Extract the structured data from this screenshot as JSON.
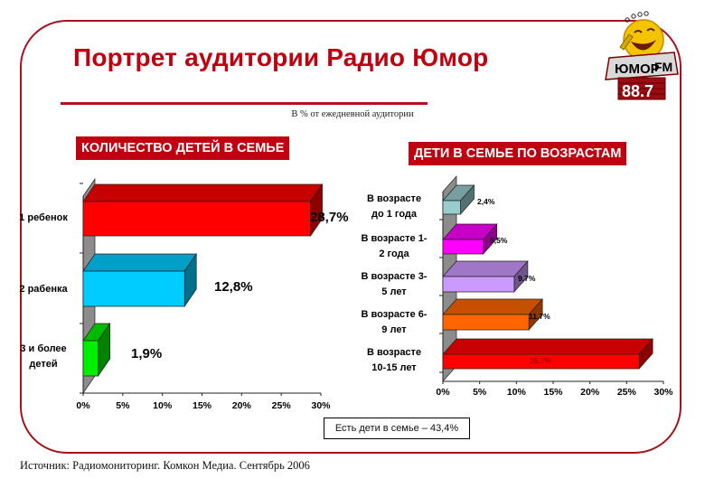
{
  "header": {
    "title": "Портрет аудитории Радио Юмор",
    "subtitle": "В % от ежедневной аудитории",
    "logo": {
      "top_text": "ЮМОР",
      "fm_text": "FM",
      "frequency": "88.7",
      "icon": "smiley-microphone-logo-icon"
    }
  },
  "left_panel": {
    "title": "КОЛИЧЕСТВО ДЕТЕЙ В СЕМЬЕ"
  },
  "right_panel": {
    "title": "ДЕТИ В СЕМЬЕ ПО ВОЗРАСТАМ"
  },
  "note": "Есть дети в семье – 43,4%",
  "source": "Источник: Радиомониторинг. Комкон Медиа. Сентябрь  2006",
  "colors": {
    "frame": "#a3141c",
    "title": "#c0000f",
    "header_bg": "#c00010"
  },
  "chart_data": [
    {
      "type": "bar",
      "orientation": "horizontal",
      "style": "3d",
      "title": "КОЛИЧЕСТВО ДЕТЕЙ В СЕМЬЕ",
      "categories": [
        "1 ребенок",
        "2 рабенка",
        "3 и более детей"
      ],
      "values": [
        28.7,
        12.8,
        1.9
      ],
      "value_labels": [
        "28,7%",
        "12,8%",
        "1,9%"
      ],
      "colors": [
        "#ff0000",
        "#00ccff",
        "#00ee00"
      ],
      "xlim": [
        0,
        30
      ],
      "xticks": [
        "0%",
        "5%",
        "10%",
        "15%",
        "20%",
        "25%",
        "30%"
      ],
      "xlabel": "",
      "ylabel": "",
      "grid": false,
      "legend": "none"
    },
    {
      "type": "bar",
      "orientation": "horizontal",
      "style": "3d",
      "title": "ДЕТИ В СЕМЬЕ ПО ВОЗРАСТАМ",
      "categories": [
        "В возрасте до 1 года",
        "В возрасте 1-2 года",
        "В возрасте 3-5 лет",
        "В возрасте 6-9 лет",
        "В возрасте 10-15 лет"
      ],
      "values": [
        2.4,
        5.5,
        9.7,
        11.7,
        26.7
      ],
      "value_labels": [
        "2,4%",
        "5,5%",
        "9,7%",
        "11,7%",
        "26,7%"
      ],
      "colors": [
        "#99cccc",
        "#ff00ff",
        "#cc99ff",
        "#ff6600",
        "#ff0000"
      ],
      "xlim": [
        0,
        30
      ],
      "xticks": [
        "0%",
        "5%",
        "10%",
        "15%",
        "20%",
        "25%",
        "30%"
      ],
      "xlabel": "",
      "ylabel": "",
      "grid": false,
      "legend": "none"
    }
  ]
}
